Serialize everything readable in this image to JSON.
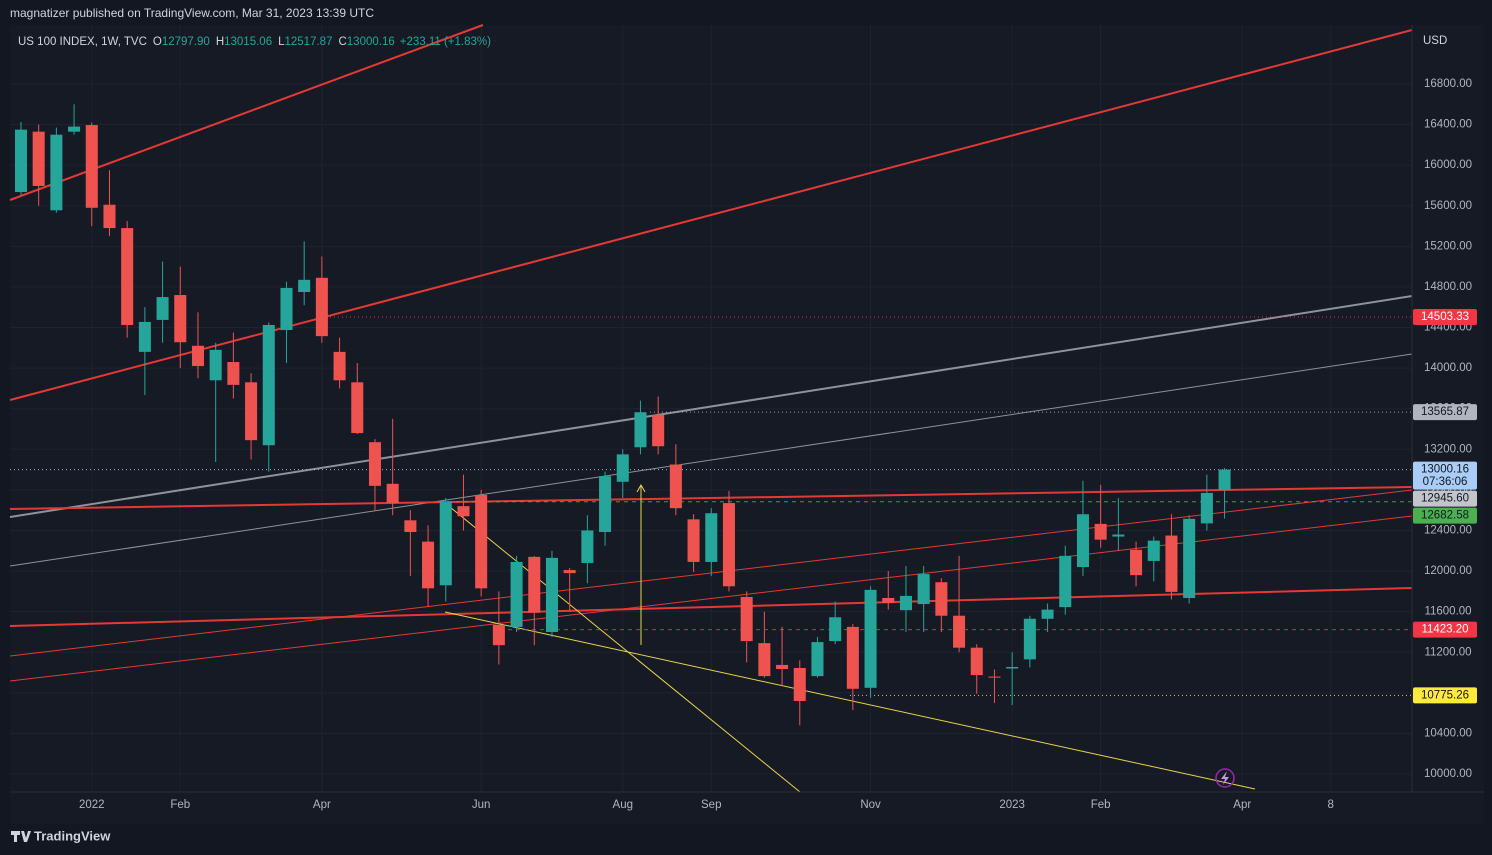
{
  "chart_data": {
    "type": "candlestick",
    "publisher": "magnatizer published on TradingView.com, Mar 31, 2023 13:39 UTC",
    "title": "US 100 INDEX, 1W, TVC",
    "legend": [
      {
        "key": "O",
        "value": "12797.90"
      },
      {
        "key": "H",
        "value": "13015.06"
      },
      {
        "key": "L",
        "value": "12517.87"
      },
      {
        "key": "C",
        "value": "13000.16"
      }
    ],
    "change": "+233.11 (+1.83%)",
    "y_axis_label": "USD",
    "brand": "TradingView",
    "up_color": "#26a69a",
    "down_color": "#ef5350",
    "grid": true,
    "categories": [
      null,
      null,
      null,
      null,
      "2022",
      null,
      null,
      null,
      null,
      "Feb",
      null,
      null,
      null,
      null,
      null,
      null,
      null,
      "Apr",
      null,
      null,
      null,
      null,
      null,
      null,
      null,
      null,
      "Jun",
      null,
      null,
      null,
      null,
      null,
      null,
      null,
      "Aug",
      null,
      null,
      null,
      null,
      "Sep",
      null,
      null,
      null,
      null,
      null,
      null,
      null,
      null,
      "Nov",
      null,
      null,
      null,
      null,
      null,
      null,
      null,
      "2023",
      null,
      null,
      null,
      null,
      "Feb",
      null,
      null,
      null,
      null,
      null,
      null,
      null
    ],
    "open": [
      15735,
      16330,
      15555,
      16330,
      16395,
      15610,
      15380,
      14160,
      14475,
      14720,
      14220,
      13880,
      14060,
      13860,
      13240,
      14375,
      14750,
      14890,
      14160,
      13860,
      13270,
      12860,
      12500,
      12290,
      11860,
      12640,
      12750,
      11470,
      11450,
      12140,
      11400,
      12010,
      12080,
      12385,
      12880,
      13220,
      13540,
      13050,
      12510,
      12090,
      12670,
      11745,
      11290,
      11075,
      11045,
      10965,
      11310,
      11450,
      10850,
      11735,
      11615,
      11675,
      11890,
      11560,
      11245,
      10960,
      11040,
      11130,
      11530,
      11645,
      12040,
      12465,
      12340,
      12210,
      12100,
      12350,
      11735,
      12470,
      12797.9
    ],
    "high": [
      16425,
      16400,
      16370,
      16600,
      16420,
      15950,
      15450,
      14600,
      15050,
      15000,
      14550,
      14250,
      14350,
      13950,
      14450,
      14850,
      15250,
      15100,
      14300,
      14050,
      13300,
      13500,
      12600,
      12450,
      12720,
      12950,
      12800,
      11800,
      12150,
      12150,
      12200,
      12030,
      12550,
      12980,
      13200,
      13680,
      13720,
      13250,
      12560,
      12620,
      12790,
      11800,
      11600,
      11450,
      11120,
      11350,
      11700,
      11480,
      11850,
      12000,
      12050,
      12050,
      11930,
      12150,
      11280,
      11030,
      11200,
      11560,
      11680,
      12250,
      12890,
      12850,
      12720,
      12290,
      12340,
      12560,
      12550,
      12950,
      13015.06
    ],
    "low": [
      15700,
      15600,
      15530,
      16300,
      15400,
      15300,
      14300,
      13735,
      14250,
      14000,
      13900,
      13075,
      13700,
      13100,
      12980,
      14050,
      14620,
      14250,
      13800,
      13350,
      12600,
      12550,
      11950,
      11650,
      11700,
      12400,
      11750,
      11080,
      11400,
      11270,
      11350,
      11600,
      11880,
      12250,
      12720,
      13150,
      13150,
      12550,
      11990,
      11950,
      11800,
      11100,
      10950,
      10870,
      10480,
      10950,
      11280,
      10630,
      10750,
      11620,
      11400,
      11400,
      11400,
      11200,
      10790,
      10700,
      10680,
      11050,
      11400,
      11570,
      11950,
      12230,
      12200,
      11850,
      11900,
      11720,
      11680,
      12400,
      12517.87
    ],
    "close": [
      16350,
      15795,
      16300,
      16380,
      15580,
      15380,
      14425,
      14455,
      14700,
      14255,
      14020,
      14180,
      13835,
      13290,
      14425,
      14790,
      14870,
      14315,
      13880,
      13360,
      12840,
      12670,
      12385,
      11830,
      12680,
      12540,
      11830,
      11270,
      12090,
      11590,
      12130,
      11980,
      12400,
      12935,
      13150,
      13565,
      13230,
      12620,
      12090,
      12570,
      11850,
      11310,
      10965,
      11035,
      10720,
      11300,
      11545,
      10840,
      11815,
      11685,
      11755,
      11970,
      11560,
      11245,
      10975,
      10950,
      11055,
      11530,
      11620,
      12150,
      12560,
      12310,
      12360,
      11960,
      12300,
      11795,
      12515,
      12770,
      13000.16
    ],
    "xlim": [
      -0.62,
      78.59
    ],
    "xticks": [
      {
        "value": 4,
        "label": "2022"
      },
      {
        "value": 9,
        "label": "Feb"
      },
      {
        "value": 17,
        "label": "Apr"
      },
      {
        "value": 26,
        "label": "Jun"
      },
      {
        "value": 34,
        "label": "Aug"
      },
      {
        "value": 39,
        "label": "Sep"
      },
      {
        "value": 48,
        "label": "Nov"
      },
      {
        "value": 56,
        "label": "2023"
      },
      {
        "value": 61,
        "label": "Feb"
      },
      {
        "value": 69,
        "label": "Apr"
      },
      {
        "value": 74,
        "label": "8"
      }
    ],
    "ylim": [
      9823,
      17381
    ],
    "yticks": [
      {
        "value": 10000,
        "label": "10000.00"
      },
      {
        "value": 10400,
        "label": "10400.00"
      },
      {
        "value": 10800,
        "label": "10800.00"
      },
      {
        "value": 11200,
        "label": "11200.00"
      },
      {
        "value": 11600,
        "label": "11600.00"
      },
      {
        "value": 12000,
        "label": "12000.00"
      },
      {
        "value": 12400,
        "label": "12400.00"
      },
      {
        "value": 12800,
        "label": "12800.00"
      },
      {
        "value": 13200,
        "label": "13200.00"
      },
      {
        "value": 13600,
        "label": "13600.00"
      },
      {
        "value": 14000,
        "label": "14000.00"
      },
      {
        "value": 14400,
        "label": "14400.00"
      },
      {
        "value": 14800,
        "label": "14800.00"
      },
      {
        "value": 15200,
        "label": "15200.00"
      },
      {
        "value": 15600,
        "label": "15600.00"
      },
      {
        "value": 16000,
        "label": "16000.00"
      },
      {
        "value": 16400,
        "label": "16400.00"
      },
      {
        "value": 16800,
        "label": "16800.00"
      }
    ],
    "price_lines": [
      {
        "value": 14503.33,
        "label": "14503.33",
        "color": "#f23645",
        "text_color": "#ffffff",
        "style": "dotted"
      },
      {
        "value": 13565.87,
        "label": "13565.87",
        "color": "#b2b5be",
        "text_color": "#131722",
        "style": "dotted"
      },
      {
        "value": 13000.16,
        "label": "13000.16",
        "countdown": "07:36:06",
        "color": "#a9cdf7",
        "text_color": "#131722",
        "style": "dotted"
      },
      {
        "value": 12945.6,
        "label": "12945.60",
        "color": "#c3c5cc",
        "text_color": "#131722"
      },
      {
        "value": 12682.58,
        "label": "12682.58",
        "color": "#4caf50",
        "text_color": "#131722",
        "style": "dashed"
      },
      {
        "value": 11423.2,
        "label": "11423.20",
        "color": "#f23645",
        "text_color": "#ffffff",
        "style": "dashed"
      },
      {
        "value": 10775.26,
        "label": "10775.26",
        "color": "#ffeb3b",
        "text_color": "#131722",
        "style": "dotted"
      }
    ]
  }
}
